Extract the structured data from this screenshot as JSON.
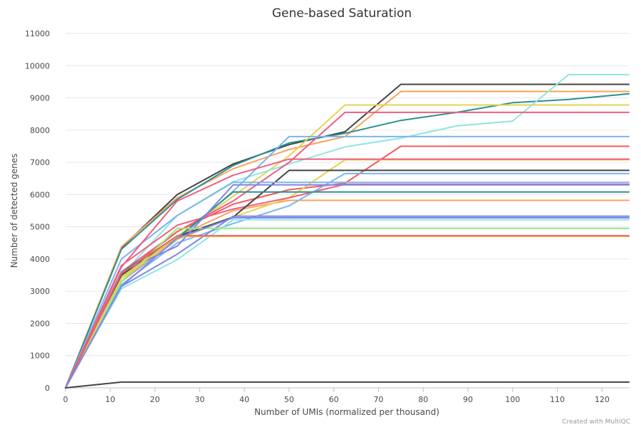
{
  "chart_data": {
    "type": "line",
    "title": "Gene-based Saturation",
    "xlabel": "Number of UMIs (normalized per thousand)",
    "ylabel": "Number of detected genes",
    "xlim": [
      0,
      126
    ],
    "ylim": [
      0,
      11000
    ],
    "xticks": [
      0,
      10,
      20,
      30,
      40,
      50,
      60,
      70,
      80,
      90,
      100,
      110,
      120
    ],
    "yticks": [
      0,
      1000,
      2000,
      3000,
      4000,
      5000,
      6000,
      7000,
      8000,
      9000,
      10000,
      11000
    ],
    "grid": true,
    "series": [
      {
        "color": "#444444",
        "points": [
          [
            0,
            0
          ],
          [
            12.5,
            4350
          ],
          [
            25,
            6000
          ],
          [
            37.5,
            6950
          ],
          [
            50,
            7550
          ],
          [
            62.5,
            7950
          ],
          [
            75,
            9420
          ],
          [
            126,
            9420
          ]
        ]
      },
      {
        "color": "#f7a35c",
        "points": [
          [
            0,
            0
          ],
          [
            12.5,
            4380
          ],
          [
            25,
            5900
          ],
          [
            37.5,
            6800
          ],
          [
            50,
            7400
          ],
          [
            62.5,
            7800
          ],
          [
            75,
            9200
          ],
          [
            126,
            9200
          ]
        ]
      },
      {
        "color": "#2b908f",
        "points": [
          [
            0,
            0
          ],
          [
            12.5,
            4300
          ],
          [
            25,
            5850
          ],
          [
            37.5,
            6900
          ],
          [
            50,
            7600
          ],
          [
            62.5,
            7900
          ],
          [
            75,
            8300
          ],
          [
            87.5,
            8550
          ],
          [
            100,
            8850
          ],
          [
            112.5,
            8950
          ],
          [
            126,
            9130
          ]
        ]
      },
      {
        "color": "#e4d354",
        "points": [
          [
            0,
            0
          ],
          [
            12.5,
            3450
          ],
          [
            25,
            4700
          ],
          [
            37.5,
            5950
          ],
          [
            50,
            7200
          ],
          [
            62.5,
            8780
          ],
          [
            126,
            8780
          ]
        ]
      },
      {
        "color": "#8ee6e0",
        "points": [
          [
            0,
            0
          ],
          [
            12.5,
            3500
          ],
          [
            25,
            5350
          ],
          [
            37.5,
            6400
          ],
          [
            50,
            6950
          ],
          [
            62.5,
            7480
          ],
          [
            75,
            7750
          ],
          [
            87.5,
            8130
          ],
          [
            100,
            8280
          ],
          [
            112.5,
            9720
          ],
          [
            126,
            9720
          ]
        ]
      },
      {
        "color": "#f15c80",
        "points": [
          [
            0,
            0
          ],
          [
            12.5,
            3600
          ],
          [
            25,
            4850
          ],
          [
            37.5,
            5800
          ],
          [
            50,
            7000
          ],
          [
            62.5,
            8550
          ],
          [
            126,
            8550
          ]
        ]
      },
      {
        "color": "#7cb5ec",
        "points": [
          [
            0,
            0
          ],
          [
            12.5,
            3300
          ],
          [
            25,
            4600
          ],
          [
            37.5,
            6100
          ],
          [
            50,
            7800
          ],
          [
            126,
            7800
          ]
        ]
      },
      {
        "color": "#f45b5b",
        "points": [
          [
            0,
            0
          ],
          [
            12.5,
            3500
          ],
          [
            25,
            4850
          ],
          [
            37.5,
            5700
          ],
          [
            50,
            6150
          ],
          [
            62.5,
            6350
          ],
          [
            75,
            7500
          ],
          [
            126,
            7500
          ]
        ]
      },
      {
        "color": "#f7a35c",
        "points": [
          [
            0,
            0
          ],
          [
            12.5,
            3300
          ],
          [
            25,
            4700
          ],
          [
            37.5,
            5500
          ],
          [
            50,
            5820
          ],
          [
            126,
            5820
          ]
        ]
      },
      {
        "color": "#e4d354",
        "points": [
          [
            0,
            0
          ],
          [
            12.5,
            3400
          ],
          [
            25,
            4600
          ],
          [
            37.5,
            5300
          ],
          [
            50,
            5900
          ],
          [
            62.5,
            7080
          ],
          [
            126,
            7080
          ]
        ]
      },
      {
        "color": "#f15c80",
        "points": [
          [
            0,
            0
          ],
          [
            12.5,
            3800
          ],
          [
            25,
            5050
          ],
          [
            37.5,
            5550
          ],
          [
            50,
            5900
          ],
          [
            62.5,
            6320
          ],
          [
            126,
            6320
          ]
        ]
      },
      {
        "color": "#7cb5ec",
        "points": [
          [
            0,
            0
          ],
          [
            12.5,
            3200
          ],
          [
            25,
            4500
          ],
          [
            37.5,
            5100
          ],
          [
            50,
            5650
          ],
          [
            62.5,
            6650
          ],
          [
            126,
            6650
          ]
        ]
      },
      {
        "color": "#444444",
        "points": [
          [
            0,
            0
          ],
          [
            12.5,
            3500
          ],
          [
            25,
            4700
          ],
          [
            37.5,
            5300
          ],
          [
            50,
            6750
          ],
          [
            126,
            6750
          ]
        ]
      },
      {
        "color": "#2b908f",
        "points": [
          [
            0,
            0
          ],
          [
            12.5,
            3600
          ],
          [
            25,
            4650
          ],
          [
            37.5,
            6080
          ],
          [
            126,
            6080
          ]
        ]
      },
      {
        "color": "#8085e9",
        "points": [
          [
            0,
            0
          ],
          [
            12.5,
            3150
          ],
          [
            25,
            4150
          ],
          [
            37.5,
            5330
          ],
          [
            126,
            5330
          ]
        ]
      },
      {
        "color": "#8ee6e0",
        "points": [
          [
            0,
            0
          ],
          [
            12.5,
            3080
          ],
          [
            25,
            3980
          ],
          [
            37.5,
            5220
          ],
          [
            126,
            5220
          ]
        ]
      },
      {
        "color": "#7cb5ec",
        "points": [
          [
            0,
            0
          ],
          [
            12.5,
            4000
          ],
          [
            25,
            5350
          ],
          [
            37.5,
            6380
          ],
          [
            126,
            6380
          ]
        ]
      },
      {
        "color": "#8085e9",
        "points": [
          [
            0,
            0
          ],
          [
            12.5,
            3600
          ],
          [
            25,
            4400
          ],
          [
            37.5,
            6300
          ],
          [
            126,
            6300
          ]
        ]
      },
      {
        "color": "#f15c80",
        "points": [
          [
            0,
            0
          ],
          [
            12.5,
            3750
          ],
          [
            25,
            5800
          ],
          [
            37.5,
            6600
          ],
          [
            50,
            7100
          ],
          [
            126,
            7100
          ]
        ]
      },
      {
        "color": "#90ed7d",
        "points": [
          [
            0,
            0
          ],
          [
            12.5,
            3300
          ],
          [
            25,
            4950
          ],
          [
            126,
            4950
          ]
        ]
      },
      {
        "color": "#e4d354",
        "points": [
          [
            0,
            0
          ],
          [
            12.5,
            3400
          ],
          [
            25,
            4700
          ],
          [
            126,
            4700
          ]
        ]
      },
      {
        "color": "#f45b5b",
        "points": [
          [
            0,
            0
          ],
          [
            12.5,
            3550
          ],
          [
            25,
            4720
          ],
          [
            126,
            4720
          ]
        ]
      },
      {
        "color": "#8085e9",
        "points": [
          [
            0,
            0
          ],
          [
            12.5,
            3150
          ],
          [
            25,
            4650
          ],
          [
            37.5,
            5280
          ],
          [
            126,
            5280
          ]
        ]
      },
      {
        "color": "#444444",
        "points": [
          [
            0,
            0
          ],
          [
            12.5,
            180
          ],
          [
            126,
            180
          ]
        ]
      }
    ]
  },
  "credit": "Created with MultiQC"
}
